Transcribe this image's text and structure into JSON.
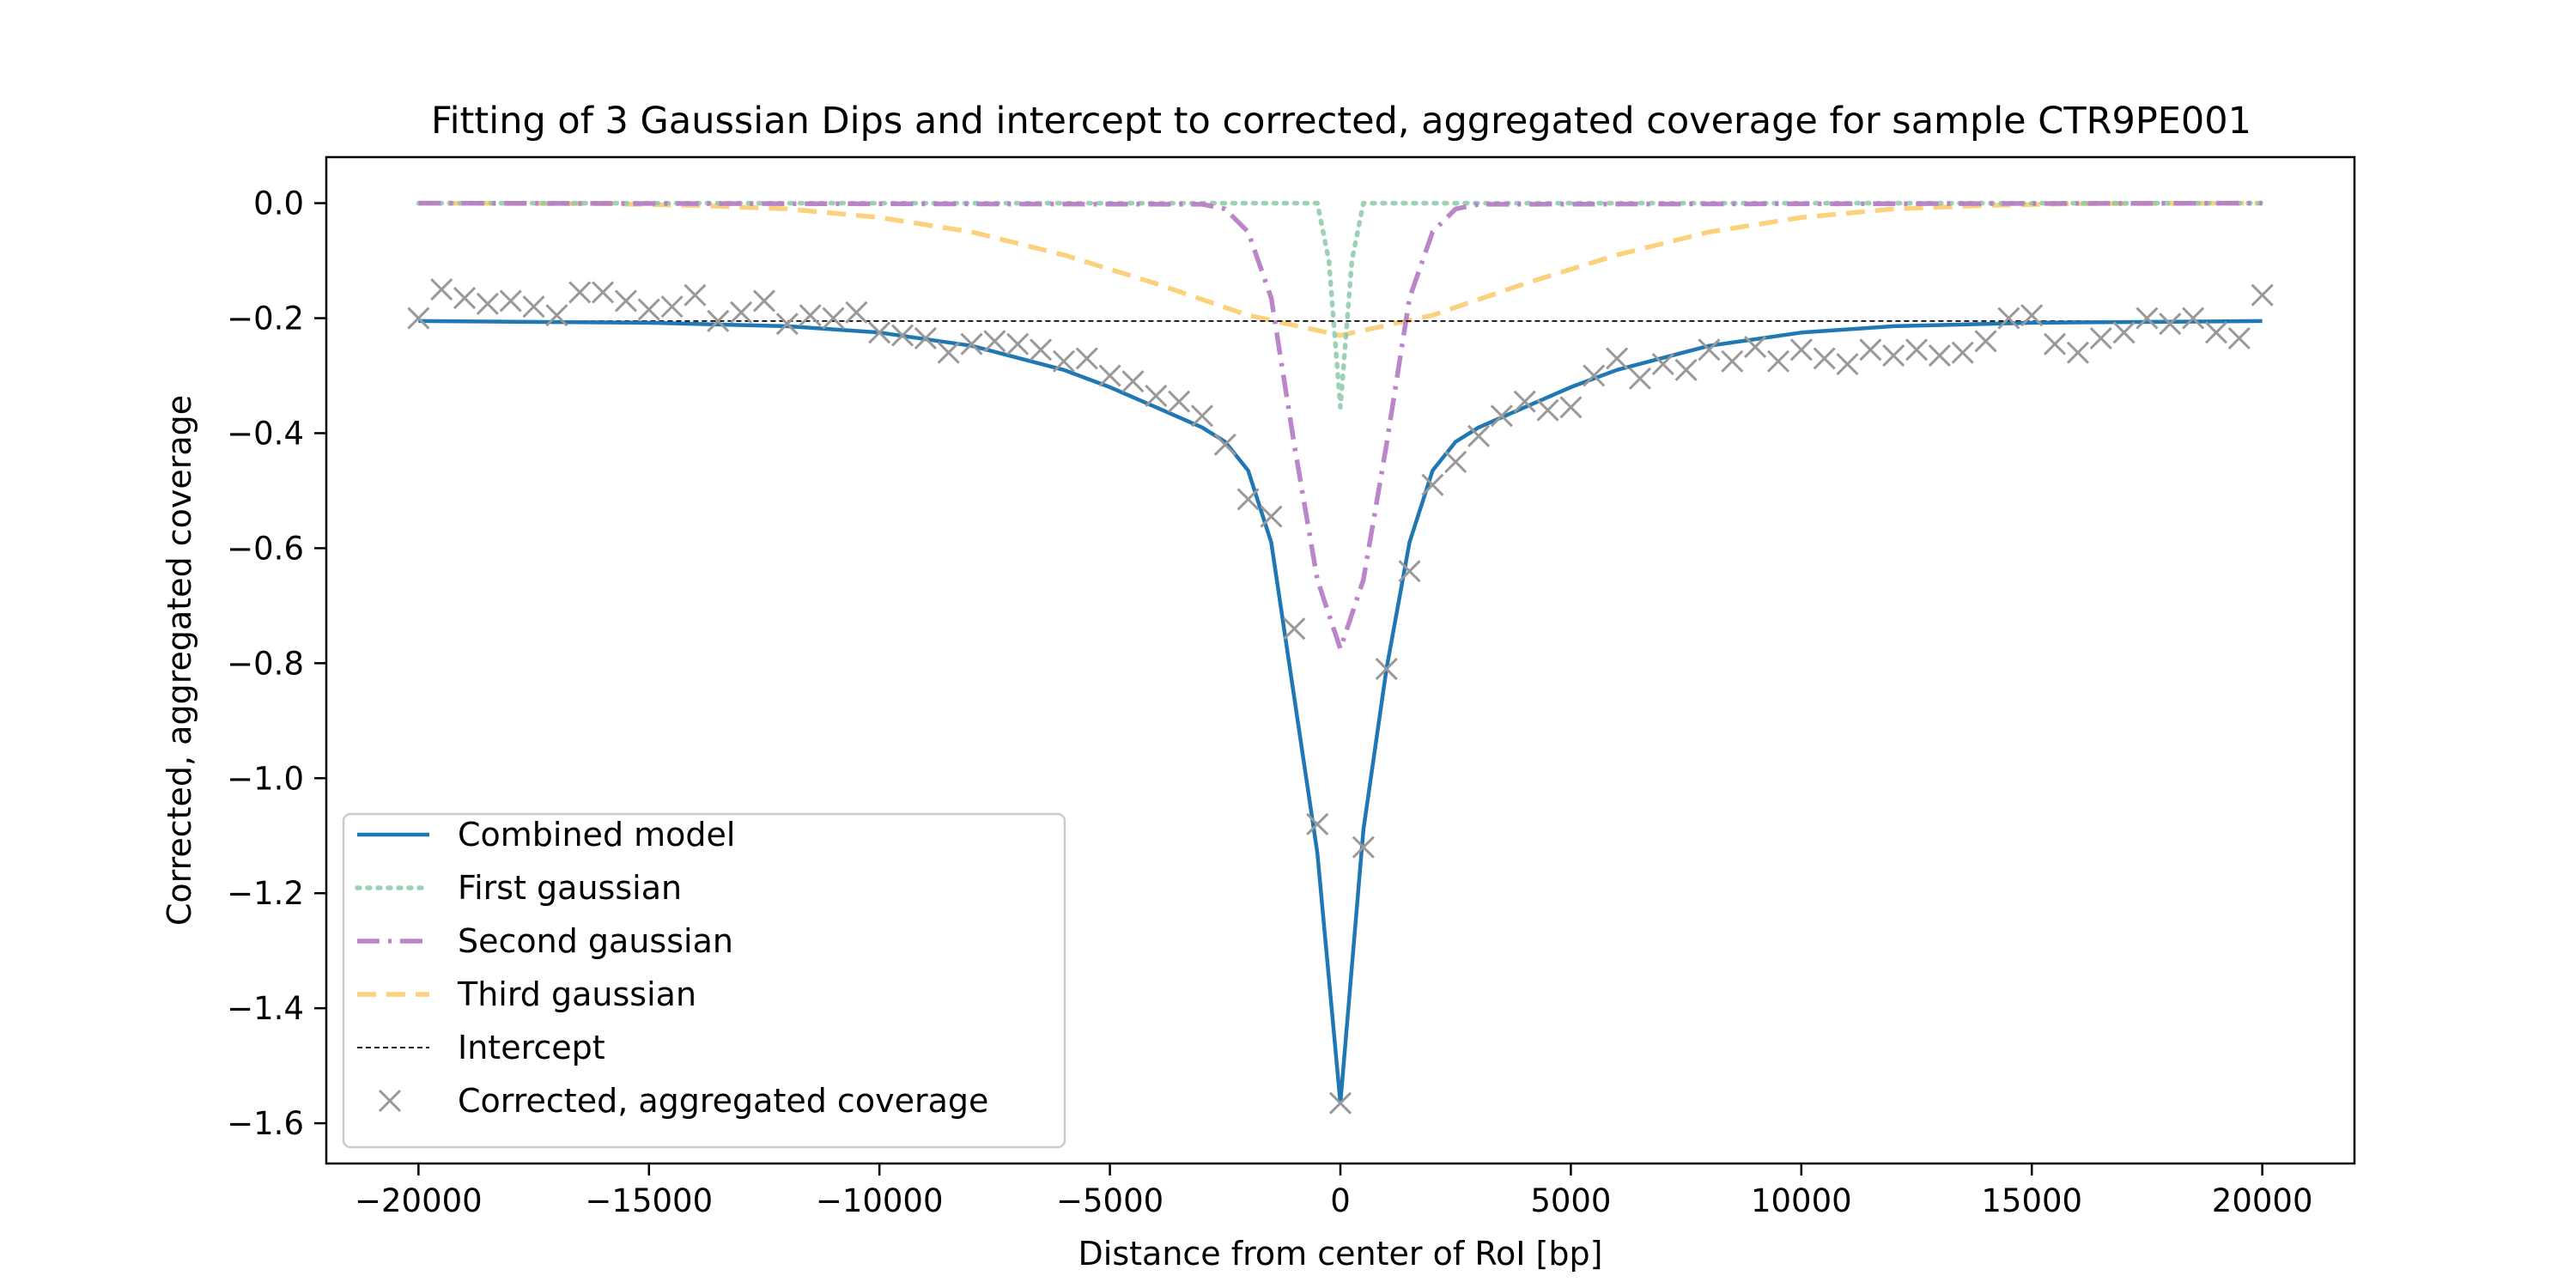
{
  "chart_data": {
    "type": "line",
    "title": "Fitting of 3 Gaussian Dips and intercept to corrected, aggregated coverage for sample CTR9PE001",
    "xlabel": "Distance from center of RoI [bp]",
    "ylabel": "Corrected, aggregated coverage",
    "xlim": [
      -22000,
      22000
    ],
    "ylim": [
      -1.67,
      0.08
    ],
    "xticks": [
      -20000,
      -15000,
      -10000,
      -5000,
      0,
      5000,
      10000,
      15000,
      20000
    ],
    "xtick_labels": [
      "−20000",
      "−15000",
      "−10000",
      "−5000",
      "0",
      "5000",
      "10000",
      "15000",
      "20000"
    ],
    "yticks": [
      0.0,
      -0.2,
      -0.4,
      -0.6,
      -0.8,
      -1.0,
      -1.2,
      -1.4,
      -1.6
    ],
    "ytick_labels": [
      "0.0",
      "−0.2",
      "−0.4",
      "−0.6",
      "−0.8",
      "−1.0",
      "−1.2",
      "−1.4",
      "−1.6"
    ],
    "grid": false,
    "legend_position": "lower-left",
    "series": [
      {
        "name": "Combined model",
        "style": "solid",
        "color": "#1f77b4",
        "x": [
          -20000,
          -15000,
          -12000,
          -10000,
          -8000,
          -6000,
          -5000,
          -4000,
          -3000,
          -2500,
          -2000,
          -1500,
          -1000,
          -500,
          0,
          500,
          1000,
          1500,
          2000,
          2500,
          3000,
          4000,
          5000,
          6000,
          8000,
          10000,
          12000,
          15000,
          20000
        ],
        "y": [
          -0.205,
          -0.208,
          -0.214,
          -0.225,
          -0.248,
          -0.29,
          -0.32,
          -0.355,
          -0.39,
          -0.415,
          -0.465,
          -0.59,
          -0.86,
          -1.13,
          -1.565,
          -1.09,
          -0.81,
          -0.59,
          -0.465,
          -0.415,
          -0.39,
          -0.355,
          -0.32,
          -0.29,
          -0.248,
          -0.225,
          -0.214,
          -0.208,
          -0.205
        ]
      },
      {
        "name": "First gaussian",
        "style": "dotted",
        "color": "#8cc9a9",
        "x": [
          -20000,
          -1000,
          -500,
          -250,
          0,
          250,
          500,
          1000,
          20000
        ],
        "y": [
          0.0,
          0.0,
          0.0,
          -0.1,
          -0.355,
          -0.1,
          0.0,
          0.0,
          0.0
        ]
      },
      {
        "name": "Second gaussian",
        "style": "dashdot",
        "color": "#b77ec6",
        "x": [
          -20000,
          -3000,
          -2500,
          -2000,
          -1500,
          -1000,
          -500,
          0,
          500,
          1000,
          1500,
          2000,
          2500,
          3000,
          20000
        ],
        "y": [
          0.0,
          -0.002,
          -0.01,
          -0.05,
          -0.165,
          -0.42,
          -0.655,
          -0.775,
          -0.655,
          -0.42,
          -0.165,
          -0.05,
          -0.01,
          -0.002,
          0.0
        ]
      },
      {
        "name": "Third gaussian",
        "style": "dashed",
        "color": "#fcd17e",
        "x": [
          -20000,
          -16000,
          -14000,
          -12000,
          -10000,
          -8000,
          -6000,
          -4000,
          -2000,
          0,
          2000,
          4000,
          6000,
          8000,
          10000,
          12000,
          14000,
          16000,
          20000
        ],
        "y": [
          0.0,
          -0.001,
          -0.004,
          -0.01,
          -0.025,
          -0.05,
          -0.09,
          -0.14,
          -0.195,
          -0.23,
          -0.195,
          -0.14,
          -0.09,
          -0.05,
          -0.025,
          -0.01,
          -0.004,
          -0.001,
          0.0
        ]
      },
      {
        "name": "Intercept",
        "style": "thin-dashed",
        "color": "#000000",
        "x": [
          -20000,
          20000
        ],
        "y": [
          -0.205,
          -0.205
        ]
      },
      {
        "name": "Corrected, aggregated coverage",
        "style": "marker-x",
        "color": "#999999",
        "x": [
          -20000,
          -19500,
          -19000,
          -18500,
          -18000,
          -17500,
          -17000,
          -16500,
          -16000,
          -15500,
          -15000,
          -14500,
          -14000,
          -13500,
          -13000,
          -12500,
          -12000,
          -11500,
          -11000,
          -10500,
          -10000,
          -9500,
          -9000,
          -8500,
          -8000,
          -7500,
          -7000,
          -6500,
          -6000,
          -5500,
          -5000,
          -4500,
          -4000,
          -3500,
          -3000,
          -2500,
          -2000,
          -1500,
          -1000,
          -500,
          0,
          500,
          1000,
          1500,
          2000,
          2500,
          3000,
          3500,
          4000,
          4500,
          5000,
          5500,
          6000,
          6500,
          7000,
          7500,
          8000,
          8500,
          9000,
          9500,
          10000,
          10500,
          11000,
          11500,
          12000,
          12500,
          13000,
          13500,
          14000,
          14500,
          15000,
          15500,
          16000,
          16500,
          17000,
          17500,
          18000,
          18500,
          19000,
          19500,
          20000
        ],
        "y": [
          -0.2,
          -0.15,
          -0.165,
          -0.175,
          -0.17,
          -0.18,
          -0.195,
          -0.155,
          -0.155,
          -0.17,
          -0.185,
          -0.18,
          -0.16,
          -0.205,
          -0.19,
          -0.17,
          -0.21,
          -0.195,
          -0.2,
          -0.19,
          -0.225,
          -0.23,
          -0.235,
          -0.26,
          -0.245,
          -0.24,
          -0.245,
          -0.255,
          -0.275,
          -0.27,
          -0.3,
          -0.31,
          -0.335,
          -0.345,
          -0.37,
          -0.42,
          -0.515,
          -0.545,
          -0.74,
          -1.08,
          -1.565,
          -1.12,
          -0.81,
          -0.64,
          -0.49,
          -0.45,
          -0.405,
          -0.37,
          -0.345,
          -0.36,
          -0.355,
          -0.3,
          -0.27,
          -0.305,
          -0.28,
          -0.29,
          -0.255,
          -0.275,
          -0.25,
          -0.275,
          -0.255,
          -0.27,
          -0.28,
          -0.255,
          -0.265,
          -0.255,
          -0.265,
          -0.26,
          -0.24,
          -0.2,
          -0.195,
          -0.245,
          -0.26,
          -0.235,
          -0.225,
          -0.2,
          -0.21,
          -0.2,
          -0.225,
          -0.235,
          -0.16
        ]
      }
    ]
  }
}
